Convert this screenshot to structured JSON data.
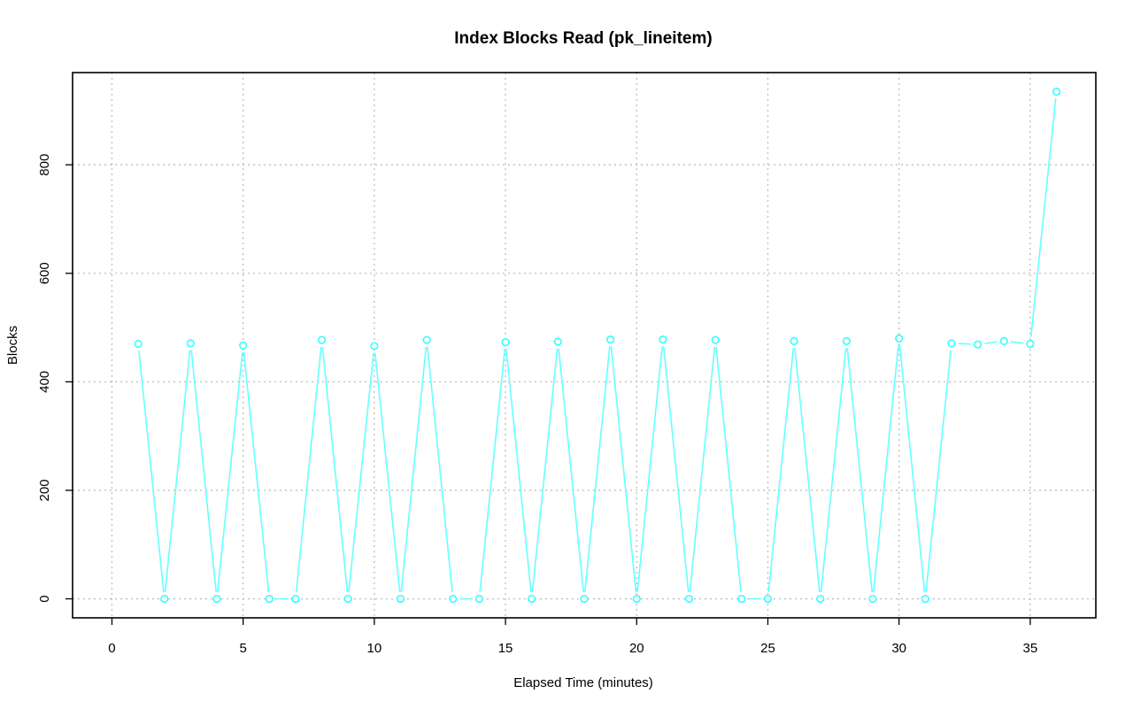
{
  "chart_data": {
    "type": "line",
    "title": "Index Blocks Read (pk_lineitem)",
    "xlabel": "Elapsed Time (minutes)",
    "ylabel": "Blocks",
    "xlim": [
      -1.5,
      37.5
    ],
    "ylim": [
      -35,
      970
    ],
    "x_ticks": [
      0,
      5,
      10,
      15,
      20,
      25,
      30,
      35
    ],
    "y_ticks": [
      0,
      200,
      400,
      600,
      800
    ],
    "grid": true,
    "series_color": "#33ffff",
    "series": [
      {
        "x": [
          1,
          2,
          3,
          4,
          5,
          6,
          7,
          8,
          9,
          10,
          11,
          12,
          13,
          14,
          15,
          16,
          17,
          18,
          19,
          20,
          21,
          22,
          23,
          24,
          25,
          26,
          27,
          28,
          29,
          30,
          31,
          32,
          33,
          34,
          35,
          36
        ],
        "values": [
          470,
          0,
          471,
          0,
          467,
          0,
          0,
          477,
          0,
          466,
          0,
          477,
          0,
          0,
          473,
          0,
          474,
          0,
          478,
          0,
          478,
          0,
          477,
          0,
          0,
          475,
          0,
          475,
          0,
          480,
          0,
          471,
          469,
          475,
          470,
          935
        ]
      }
    ]
  }
}
